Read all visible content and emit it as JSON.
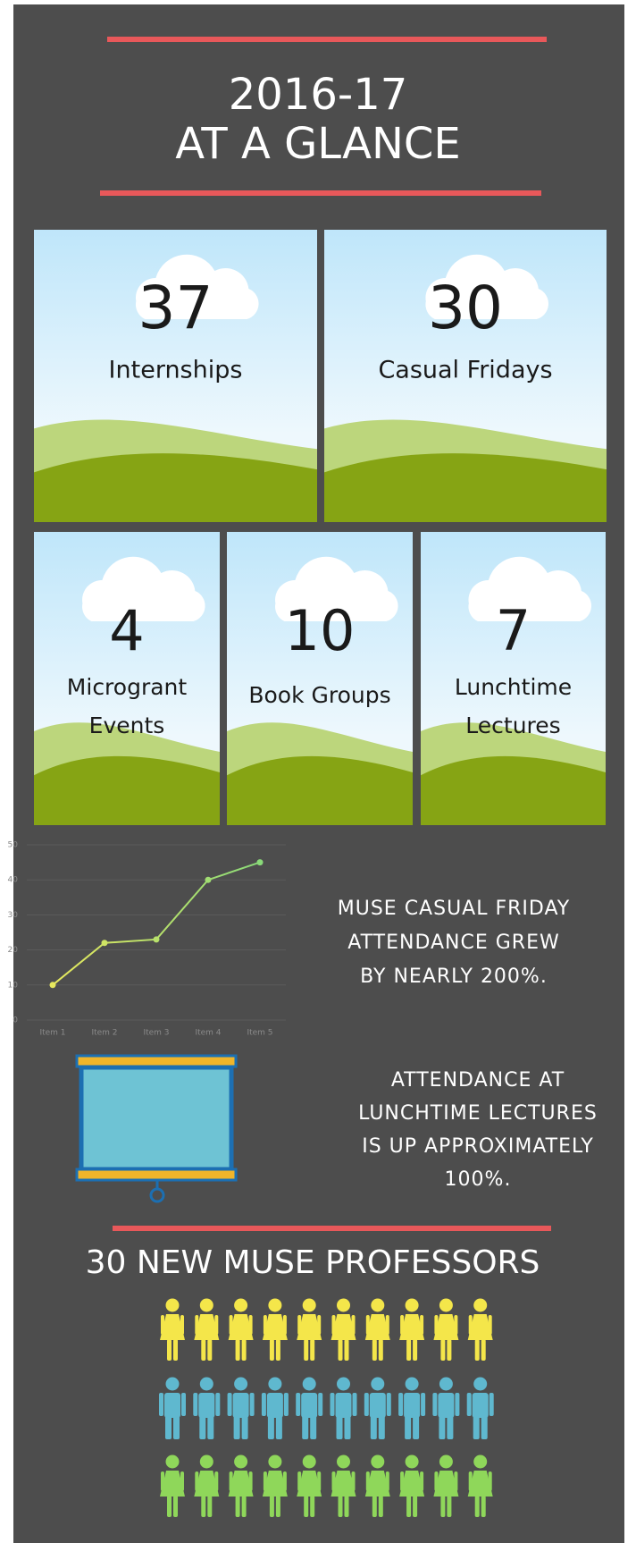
{
  "header": {
    "title_lines": [
      "2016-17",
      "AT A GLANCE"
    ]
  },
  "stats": [
    {
      "value": 37,
      "label_lines": [
        "Internships"
      ]
    },
    {
      "value": 30,
      "label_lines": [
        "Casual Fridays"
      ]
    },
    {
      "value": 4,
      "label_lines": [
        "Microgrant",
        "Events"
      ]
    },
    {
      "value": 10,
      "label_lines": [
        "Book Groups"
      ]
    },
    {
      "value": 7,
      "label_lines": [
        "Lunchtime",
        "Lectures"
      ]
    }
  ],
  "chart_data": {
    "type": "line",
    "categories": [
      "Item 1",
      "Item 2",
      "Item 3",
      "Item 4",
      "Item 5"
    ],
    "series": [
      {
        "values": [
          10,
          22,
          23,
          40,
          45
        ],
        "colors": [
          "#f2ea5a",
          "#7ed87c"
        ]
      }
    ],
    "ylim": [
      0,
      50
    ],
    "yticks": [
      0,
      10,
      20,
      30,
      40,
      50
    ],
    "grid": true
  },
  "callouts": [
    {
      "lines": [
        "MUSE CASUAL FRIDAY",
        "ATTENDANCE GREW",
        "BY NEARLY 200%."
      ]
    },
    {
      "lines": [
        "ATTENDANCE AT",
        "LUNCHTIME LECTURES",
        "IS UP APPROXIMATELY",
        "100%."
      ]
    }
  ],
  "professors": {
    "title": "30 NEW MUSE PROFESSORS"
  }
}
